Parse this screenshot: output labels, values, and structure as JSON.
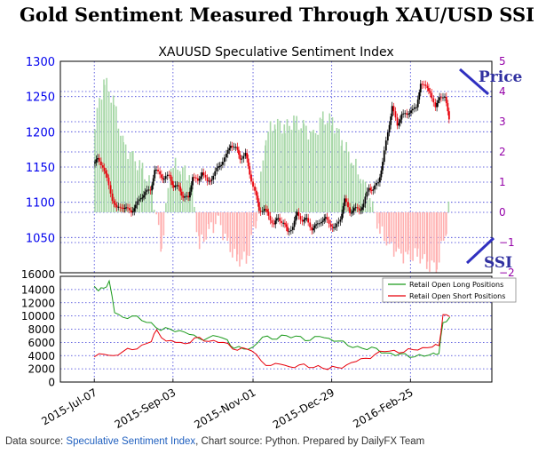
{
  "header": {
    "title": "Gold Sentiment Measured Through XAU/USD SSI"
  },
  "footer": {
    "prefix": "Data source: ",
    "source_link": "Speculative Sentiment Index",
    "suffix": ", Chart source: Python. Prepared by DailyFX Team"
  },
  "colors": {
    "price_up": "#000000",
    "price_down": "#e8000b",
    "ssi_positive": "#a8d8a8",
    "ssi_negative": "#ffb0b0",
    "long_line": "#1a9a1a",
    "short_line": "#e8000b",
    "left_axis": "#0000ee",
    "right_axis": "#9400a8",
    "annotation": "#3030a0"
  },
  "chart_data": [
    {
      "type": "candlestick+bar",
      "title": "XAUUSD Speculative Sentiment Index",
      "y_left": {
        "ylim": [
          1000,
          1300
        ],
        "ticks": [
          1050,
          1100,
          1150,
          1200,
          1250,
          1300
        ],
        "tick_labels": [
          "1050",
          "1100",
          "1150",
          "1200",
          "1250",
          "1300"
        ]
      },
      "y_right": {
        "ylim": [
          -2,
          5
        ],
        "ticks": [
          -2,
          -1,
          0,
          1,
          2,
          3,
          4,
          5
        ],
        "tick_labels": [
          "−2",
          "−1",
          "0",
          "1",
          "2",
          "3",
          "4",
          "5"
        ]
      },
      "annotations": [
        {
          "text": "Price"
        },
        {
          "text": "SSI"
        }
      ],
      "price_close": [
        {
          "date": "2015-07-07",
          "v": 1155
        },
        {
          "date": "2015-07-10",
          "v": 1160
        },
        {
          "date": "2015-07-14",
          "v": 1152
        },
        {
          "date": "2015-07-17",
          "v": 1132
        },
        {
          "date": "2015-07-21",
          "v": 1105
        },
        {
          "date": "2015-07-24",
          "v": 1090
        },
        {
          "date": "2015-07-28",
          "v": 1095
        },
        {
          "date": "2015-07-31",
          "v": 1090
        },
        {
          "date": "2015-08-04",
          "v": 1088
        },
        {
          "date": "2015-08-07",
          "v": 1094
        },
        {
          "date": "2015-08-11",
          "v": 1108
        },
        {
          "date": "2015-08-14",
          "v": 1113
        },
        {
          "date": "2015-08-18",
          "v": 1118
        },
        {
          "date": "2015-08-21",
          "v": 1145
        },
        {
          "date": "2015-08-25",
          "v": 1140
        },
        {
          "date": "2015-08-28",
          "v": 1133
        },
        {
          "date": "2015-09-01",
          "v": 1138
        },
        {
          "date": "2015-09-04",
          "v": 1122
        },
        {
          "date": "2015-09-08",
          "v": 1121
        },
        {
          "date": "2015-09-11",
          "v": 1108
        },
        {
          "date": "2015-09-15",
          "v": 1105
        },
        {
          "date": "2015-09-18",
          "v": 1138
        },
        {
          "date": "2015-09-22",
          "v": 1128
        },
        {
          "date": "2015-09-25",
          "v": 1145
        },
        {
          "date": "2015-09-29",
          "v": 1127
        },
        {
          "date": "2015-10-02",
          "v": 1135
        },
        {
          "date": "2015-10-06",
          "v": 1146
        },
        {
          "date": "2015-10-09",
          "v": 1156
        },
        {
          "date": "2015-10-13",
          "v": 1166
        },
        {
          "date": "2015-10-16",
          "v": 1183
        },
        {
          "date": "2015-10-20",
          "v": 1176
        },
        {
          "date": "2015-10-23",
          "v": 1163
        },
        {
          "date": "2015-10-27",
          "v": 1168
        },
        {
          "date": "2015-10-30",
          "v": 1141
        },
        {
          "date": "2015-11-03",
          "v": 1115
        },
        {
          "date": "2015-11-06",
          "v": 1089
        },
        {
          "date": "2015-11-10",
          "v": 1090
        },
        {
          "date": "2015-11-13",
          "v": 1081
        },
        {
          "date": "2015-11-17",
          "v": 1069
        },
        {
          "date": "2015-11-20",
          "v": 1077
        },
        {
          "date": "2015-11-24",
          "v": 1072
        },
        {
          "date": "2015-11-27",
          "v": 1057
        },
        {
          "date": "2015-12-01",
          "v": 1067
        },
        {
          "date": "2015-12-04",
          "v": 1084
        },
        {
          "date": "2015-12-08",
          "v": 1075
        },
        {
          "date": "2015-12-11",
          "v": 1075
        },
        {
          "date": "2015-12-15",
          "v": 1063
        },
        {
          "date": "2015-12-18",
          "v": 1066
        },
        {
          "date": "2015-12-22",
          "v": 1075
        },
        {
          "date": "2015-12-25",
          "v": 1076
        },
        {
          "date": "2015-12-29",
          "v": 1068
        },
        {
          "date": "2016-01-01",
          "v": 1062
        },
        {
          "date": "2016-01-05",
          "v": 1078
        },
        {
          "date": "2016-01-08",
          "v": 1103
        },
        {
          "date": "2016-01-12",
          "v": 1087
        },
        {
          "date": "2016-01-15",
          "v": 1090
        },
        {
          "date": "2016-01-19",
          "v": 1090
        },
        {
          "date": "2016-01-22",
          "v": 1097
        },
        {
          "date": "2016-01-26",
          "v": 1121
        },
        {
          "date": "2016-01-29",
          "v": 1118
        },
        {
          "date": "2016-02-02",
          "v": 1128
        },
        {
          "date": "2016-02-05",
          "v": 1158
        },
        {
          "date": "2016-02-09",
          "v": 1198
        },
        {
          "date": "2016-02-12",
          "v": 1238
        },
        {
          "date": "2016-02-16",
          "v": 1207
        },
        {
          "date": "2016-02-19",
          "v": 1227
        },
        {
          "date": "2016-02-23",
          "v": 1222
        },
        {
          "date": "2016-02-26",
          "v": 1233
        },
        {
          "date": "2016-03-01",
          "v": 1232
        },
        {
          "date": "2016-03-04",
          "v": 1271
        },
        {
          "date": "2016-03-08",
          "v": 1262
        },
        {
          "date": "2016-03-11",
          "v": 1258
        },
        {
          "date": "2016-03-15",
          "v": 1232
        },
        {
          "date": "2016-03-18",
          "v": 1252
        },
        {
          "date": "2016-03-22",
          "v": 1247
        },
        {
          "date": "2016-03-25",
          "v": 1220
        }
      ],
      "ssi": [
        {
          "date": "2015-07-07",
          "v": 3.0
        },
        {
          "date": "2015-07-14",
          "v": 4.4
        },
        {
          "date": "2015-07-21",
          "v": 3.6
        },
        {
          "date": "2015-07-28",
          "v": 2.2
        },
        {
          "date": "2015-08-04",
          "v": 1.8
        },
        {
          "date": "2015-08-11",
          "v": 1.4
        },
        {
          "date": "2015-08-18",
          "v": 0.8
        },
        {
          "date": "2015-08-25",
          "v": -1.2
        },
        {
          "date": "2015-09-01",
          "v": 1.6
        },
        {
          "date": "2015-09-08",
          "v": 1.5
        },
        {
          "date": "2015-09-15",
          "v": 1.2
        },
        {
          "date": "2015-09-22",
          "v": -1.1
        },
        {
          "date": "2015-09-29",
          "v": -0.6
        },
        {
          "date": "2015-10-06",
          "v": -0.3
        },
        {
          "date": "2015-10-13",
          "v": -1.1
        },
        {
          "date": "2015-10-20",
          "v": -1.6
        },
        {
          "date": "2015-10-27",
          "v": -1.5
        },
        {
          "date": "2015-11-03",
          "v": -0.2
        },
        {
          "date": "2015-11-10",
          "v": 2.6
        },
        {
          "date": "2015-11-17",
          "v": 3.0
        },
        {
          "date": "2015-11-24",
          "v": 2.8
        },
        {
          "date": "2015-12-01",
          "v": 3.0
        },
        {
          "date": "2015-12-08",
          "v": 2.8
        },
        {
          "date": "2015-12-15",
          "v": 2.5
        },
        {
          "date": "2015-12-22",
          "v": 3.1
        },
        {
          "date": "2015-12-29",
          "v": 3.0
        },
        {
          "date": "2016-01-05",
          "v": 2.4
        },
        {
          "date": "2016-01-12",
          "v": 1.8
        },
        {
          "date": "2016-01-19",
          "v": 1.2
        },
        {
          "date": "2016-01-26",
          "v": 0.4
        },
        {
          "date": "2016-02-02",
          "v": -0.6
        },
        {
          "date": "2016-02-09",
          "v": -1.1
        },
        {
          "date": "2016-02-16",
          "v": -1.4
        },
        {
          "date": "2016-02-23",
          "v": -1.5
        },
        {
          "date": "2016-03-01",
          "v": -1.4
        },
        {
          "date": "2016-03-08",
          "v": -1.7
        },
        {
          "date": "2016-03-15",
          "v": -1.8
        },
        {
          "date": "2016-03-22",
          "v": -0.5
        },
        {
          "date": "2016-03-25",
          "v": 1.1
        }
      ]
    },
    {
      "type": "line",
      "ylim": [
        0,
        16000
      ],
      "y_ticks": [
        0,
        2000,
        4000,
        6000,
        8000,
        10000,
        12000,
        14000,
        16000
      ],
      "y_tick_labels": [
        "0",
        "2000",
        "4000",
        "6000",
        "8000",
        "10000",
        "12000",
        "14000",
        "16000"
      ],
      "x_ticks": [
        {
          "date": "2015-07-07",
          "label": "2015-Jul-07"
        },
        {
          "date": "2015-09-03",
          "label": "2015-Sep-03"
        },
        {
          "date": "2015-11-01",
          "label": "2015-Nov-01"
        },
        {
          "date": "2015-12-29",
          "label": "2015-Dec-29"
        },
        {
          "date": "2016-02-25",
          "label": "2016-Feb-25"
        }
      ],
      "legend": "top-right",
      "series": [
        {
          "name": "Retail Open Long Positions",
          "color_key": "long_line",
          "points": [
            {
              "date": "2015-07-07",
              "v": 14500
            },
            {
              "date": "2015-07-10",
              "v": 13800
            },
            {
              "date": "2015-07-14",
              "v": 14200
            },
            {
              "date": "2015-07-18",
              "v": 15300
            },
            {
              "date": "2015-07-22",
              "v": 10500
            },
            {
              "date": "2015-07-28",
              "v": 9800
            },
            {
              "date": "2015-08-04",
              "v": 10000
            },
            {
              "date": "2015-08-11",
              "v": 9300
            },
            {
              "date": "2015-08-18",
              "v": 9000
            },
            {
              "date": "2015-08-25",
              "v": 7800
            },
            {
              "date": "2015-09-01",
              "v": 8000
            },
            {
              "date": "2015-09-08",
              "v": 7800
            },
            {
              "date": "2015-09-15",
              "v": 7200
            },
            {
              "date": "2015-09-22",
              "v": 6600
            },
            {
              "date": "2015-09-29",
              "v": 6700
            },
            {
              "date": "2015-10-06",
              "v": 6900
            },
            {
              "date": "2015-10-13",
              "v": 6400
            },
            {
              "date": "2015-10-18",
              "v": 5100
            },
            {
              "date": "2015-10-25",
              "v": 5000
            },
            {
              "date": "2015-11-01",
              "v": 5300
            },
            {
              "date": "2015-11-08",
              "v": 6800
            },
            {
              "date": "2015-11-15",
              "v": 6500
            },
            {
              "date": "2015-11-22",
              "v": 7100
            },
            {
              "date": "2015-11-29",
              "v": 6700
            },
            {
              "date": "2015-12-06",
              "v": 6900
            },
            {
              "date": "2015-12-13",
              "v": 6300
            },
            {
              "date": "2015-12-20",
              "v": 6900
            },
            {
              "date": "2015-12-27",
              "v": 6600
            },
            {
              "date": "2016-01-03",
              "v": 6200
            },
            {
              "date": "2016-01-10",
              "v": 5500
            },
            {
              "date": "2016-01-17",
              "v": 5400
            },
            {
              "date": "2016-01-24",
              "v": 4900
            },
            {
              "date": "2016-01-31",
              "v": 5100
            },
            {
              "date": "2016-02-07",
              "v": 4400
            },
            {
              "date": "2016-02-14",
              "v": 4000
            },
            {
              "date": "2016-02-21",
              "v": 4300
            },
            {
              "date": "2016-02-28",
              "v": 3800
            },
            {
              "date": "2016-03-06",
              "v": 3900
            },
            {
              "date": "2016-03-13",
              "v": 4400
            },
            {
              "date": "2016-03-17",
              "v": 4300
            },
            {
              "date": "2016-03-20",
              "v": 9000
            },
            {
              "date": "2016-03-25",
              "v": 9800
            }
          ]
        },
        {
          "name": "Retail Open Short Positions",
          "color_key": "short_line",
          "points": [
            {
              "date": "2015-07-07",
              "v": 3800
            },
            {
              "date": "2015-07-14",
              "v": 4200
            },
            {
              "date": "2015-07-21",
              "v": 4000
            },
            {
              "date": "2015-07-28",
              "v": 4600
            },
            {
              "date": "2015-08-04",
              "v": 4900
            },
            {
              "date": "2015-08-11",
              "v": 5600
            },
            {
              "date": "2015-08-18",
              "v": 6100
            },
            {
              "date": "2015-08-22",
              "v": 7900
            },
            {
              "date": "2015-08-29",
              "v": 6200
            },
            {
              "date": "2015-09-05",
              "v": 6000
            },
            {
              "date": "2015-09-12",
              "v": 5800
            },
            {
              "date": "2015-09-19",
              "v": 6700
            },
            {
              "date": "2015-09-26",
              "v": 6200
            },
            {
              "date": "2015-10-03",
              "v": 6300
            },
            {
              "date": "2015-10-10",
              "v": 6000
            },
            {
              "date": "2015-10-17",
              "v": 5000
            },
            {
              "date": "2015-10-24",
              "v": 5200
            },
            {
              "date": "2015-10-31",
              "v": 4700
            },
            {
              "date": "2015-11-07",
              "v": 3200
            },
            {
              "date": "2015-11-14",
              "v": 2500
            },
            {
              "date": "2015-11-21",
              "v": 2700
            },
            {
              "date": "2015-11-28",
              "v": 2300
            },
            {
              "date": "2015-12-05",
              "v": 2600
            },
            {
              "date": "2015-12-12",
              "v": 2200
            },
            {
              "date": "2015-12-19",
              "v": 2500
            },
            {
              "date": "2015-12-26",
              "v": 1900
            },
            {
              "date": "2016-01-02",
              "v": 2200
            },
            {
              "date": "2016-01-09",
              "v": 2600
            },
            {
              "date": "2016-01-16",
              "v": 3100
            },
            {
              "date": "2016-01-23",
              "v": 3600
            },
            {
              "date": "2016-01-30",
              "v": 4200
            },
            {
              "date": "2016-02-06",
              "v": 4600
            },
            {
              "date": "2016-02-13",
              "v": 4800
            },
            {
              "date": "2016-02-20",
              "v": 4500
            },
            {
              "date": "2016-02-27",
              "v": 4900
            },
            {
              "date": "2016-03-05",
              "v": 5200
            },
            {
              "date": "2016-03-12",
              "v": 5300
            },
            {
              "date": "2016-03-17",
              "v": 5500
            },
            {
              "date": "2016-03-20",
              "v": 10200
            },
            {
              "date": "2016-03-25",
              "v": 9900
            }
          ]
        }
      ]
    }
  ]
}
